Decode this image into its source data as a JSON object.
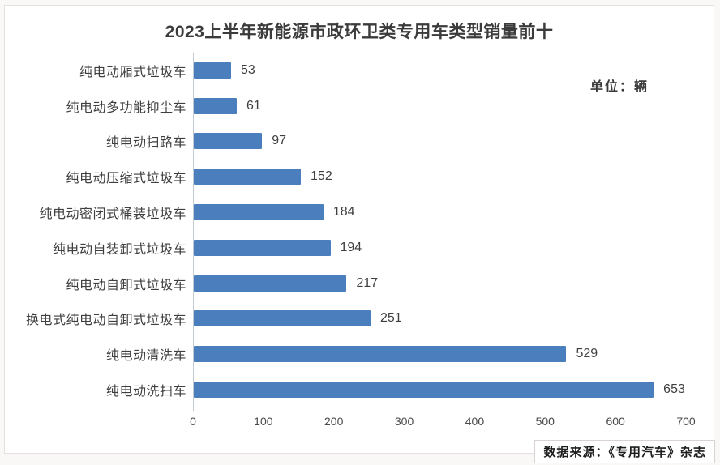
{
  "page": {
    "title": "2023上半年新能源市政环卫类专用车类型销量前十",
    "unit_label": "单位：辆",
    "source": "数据来源：《专用汽车》杂志"
  },
  "chart_data": {
    "type": "bar",
    "orientation": "horizontal",
    "title": "2023上半年新能源市政环卫类专用车类型销量前十",
    "unit": "辆",
    "categories": [
      "纯电动厢式垃圾车",
      "纯电动多功能抑尘车",
      "纯电动扫路车",
      "纯电动压缩式垃圾车",
      "纯电动密闭式桶装垃圾车",
      "纯电动自装卸式垃圾车",
      "纯电动自卸式垃圾车",
      "换电式纯电动自卸式垃圾车",
      "纯电动清洗车",
      "纯电动洗扫车"
    ],
    "values": [
      53,
      61,
      97,
      152,
      184,
      194,
      217,
      251,
      529,
      653
    ],
    "xlim": [
      0,
      700
    ],
    "x_ticks": [
      0,
      100,
      200,
      300,
      400,
      500,
      600,
      700
    ],
    "xlabel": "",
    "ylabel": "",
    "grid": false,
    "legend": null,
    "value_labels_shown": true,
    "bar_color": "#4a7ebd"
  },
  "colors": {
    "bar": "#4a7ebd",
    "text": "#3f3f3f",
    "axis_line": "#c3cad3",
    "card_background": "#ffffff",
    "page_background": "#faf8f7"
  }
}
